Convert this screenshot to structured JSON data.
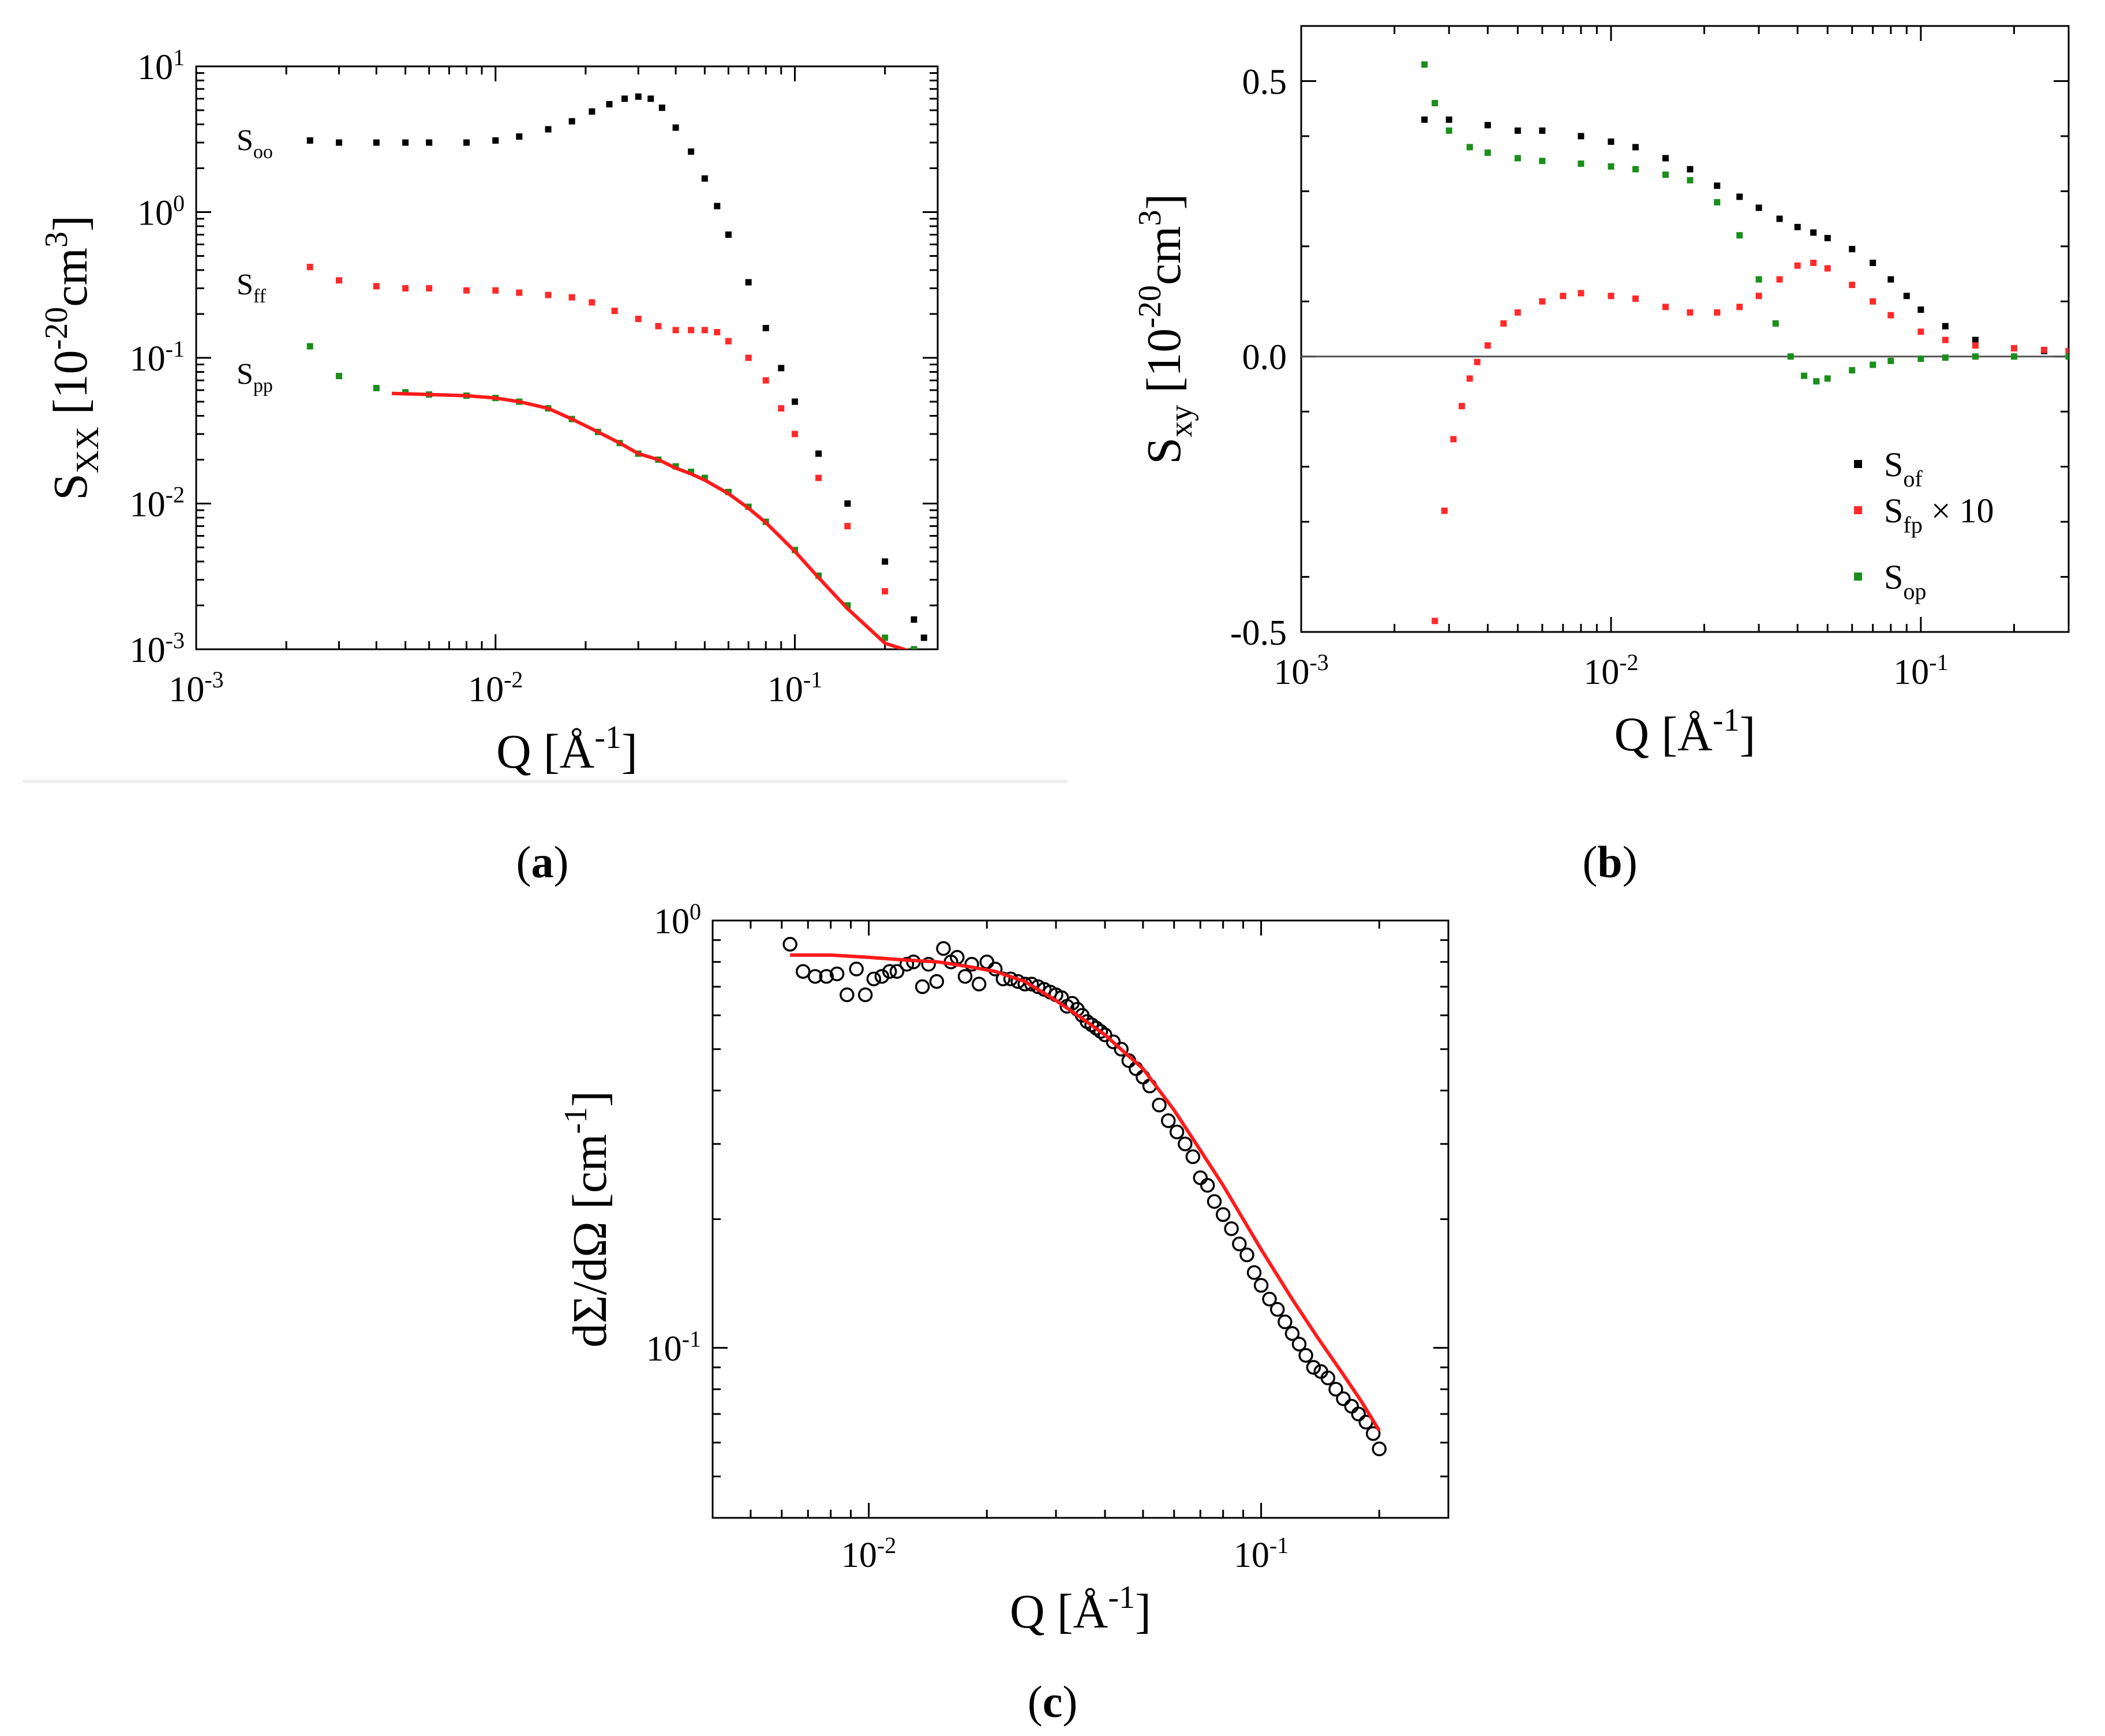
{
  "panel_labels": {
    "a": {
      "open": "(",
      "letter": "a",
      "close": ")"
    },
    "b": {
      "open": "(",
      "letter": "b",
      "close": ")"
    },
    "c": {
      "open": "(",
      "letter": "c",
      "close": ")"
    }
  },
  "colors": {
    "black": "#000000",
    "red": "#ff2a2a",
    "green": "#1a8f1a",
    "fit": "#ff1a1a",
    "axis": "#000000",
    "zero_line": "#555555"
  },
  "chart_data": [
    {
      "id": "a",
      "type": "scatter",
      "xscale": "log",
      "yscale": "log",
      "xlim": [
        0.001,
        0.3
      ],
      "ylim": [
        0.001,
        10
      ],
      "xlabel": {
        "base": "Q [Å",
        "sup": "-1",
        "tail": "]"
      },
      "ylabel": {
        "base": "S",
        "sub": "XX",
        "mid": " [10",
        "sup1": "-20",
        "mid2": "cm",
        "sup2": "3",
        "tail": "]"
      },
      "xticks": [
        {
          "base": "10",
          "exp": "-3"
        },
        {
          "base": "10",
          "exp": "-2"
        },
        {
          "base": "10",
          "exp": "-1"
        }
      ],
      "yticks": [
        {
          "base": "10",
          "exp": "-3"
        },
        {
          "base": "10",
          "exp": "-2"
        },
        {
          "base": "10",
          "exp": "-1"
        },
        {
          "base": "10",
          "exp": "0"
        },
        {
          "base": "10",
          "exp": "1"
        }
      ],
      "series": [
        {
          "name": "S_oo",
          "label": {
            "base": "S",
            "sub": "oo"
          },
          "color": "#000000",
          "marker": "square",
          "x": [
            0.0024,
            0.003,
            0.004,
            0.005,
            0.006,
            0.008,
            0.01,
            0.012,
            0.015,
            0.018,
            0.021,
            0.024,
            0.027,
            0.03,
            0.033,
            0.036,
            0.04,
            0.045,
            0.05,
            0.055,
            0.06,
            0.07,
            0.08,
            0.09,
            0.1,
            0.12,
            0.15,
            0.2,
            0.25,
            0.27
          ],
          "y": [
            3.1,
            3.0,
            3.0,
            3.0,
            3.0,
            3.0,
            3.1,
            3.3,
            3.7,
            4.2,
            4.9,
            5.5,
            6.0,
            6.2,
            6.0,
            5.2,
            3.8,
            2.6,
            1.7,
            1.1,
            0.7,
            0.33,
            0.16,
            0.085,
            0.05,
            0.022,
            0.01,
            0.004,
            0.0016,
            0.0012
          ]
        },
        {
          "name": "S_ff",
          "label": {
            "base": "S",
            "sub": "ff"
          },
          "color": "#ff2a2a",
          "marker": "square",
          "x": [
            0.0024,
            0.003,
            0.004,
            0.005,
            0.006,
            0.008,
            0.01,
            0.012,
            0.015,
            0.018,
            0.021,
            0.025,
            0.03,
            0.035,
            0.04,
            0.045,
            0.05,
            0.055,
            0.06,
            0.07,
            0.08,
            0.09,
            0.1,
            0.12,
            0.15,
            0.2,
            0.25
          ],
          "y": [
            0.42,
            0.34,
            0.31,
            0.3,
            0.3,
            0.29,
            0.29,
            0.28,
            0.27,
            0.26,
            0.24,
            0.21,
            0.185,
            0.165,
            0.155,
            0.155,
            0.155,
            0.15,
            0.13,
            0.1,
            0.07,
            0.045,
            0.03,
            0.015,
            0.007,
            0.0025,
            0.001
          ]
        },
        {
          "name": "S_pp",
          "label": {
            "base": "S",
            "sub": "pp"
          },
          "color": "#1a8f1a",
          "marker": "square",
          "x": [
            0.0024,
            0.003,
            0.004,
            0.005,
            0.006,
            0.008,
            0.01,
            0.012,
            0.015,
            0.018,
            0.022,
            0.026,
            0.03,
            0.035,
            0.04,
            0.045,
            0.05,
            0.06,
            0.07,
            0.08,
            0.1,
            0.12,
            0.15,
            0.2,
            0.25
          ],
          "y": [
            0.12,
            0.075,
            0.062,
            0.058,
            0.056,
            0.055,
            0.053,
            0.05,
            0.045,
            0.038,
            0.031,
            0.026,
            0.022,
            0.02,
            0.018,
            0.0165,
            0.015,
            0.012,
            0.0095,
            0.0075,
            0.0048,
            0.0032,
            0.002,
            0.0012,
            0.001
          ]
        },
        {
          "name": "S_pp fit",
          "color": "#ff1a1a",
          "marker": "line",
          "x": [
            0.0045,
            0.006,
            0.008,
            0.01,
            0.012,
            0.015,
            0.018,
            0.022,
            0.026,
            0.03,
            0.035,
            0.04,
            0.045,
            0.05,
            0.06,
            0.07,
            0.08,
            0.1,
            0.12,
            0.15,
            0.2,
            0.25
          ],
          "y": [
            0.057,
            0.056,
            0.055,
            0.053,
            0.05,
            0.045,
            0.038,
            0.031,
            0.026,
            0.022,
            0.02,
            0.0175,
            0.016,
            0.0145,
            0.0117,
            0.0093,
            0.0074,
            0.0047,
            0.0031,
            0.0019,
            0.0011,
            0.00095
          ]
        }
      ]
    },
    {
      "id": "b",
      "type": "scatter",
      "xscale": "log",
      "yscale": "linear",
      "xlim": [
        0.001,
        0.3
      ],
      "ylim": [
        -0.5,
        0.6
      ],
      "xlabel": {
        "base": "Q [Å",
        "sup": "-1",
        "tail": "]"
      },
      "ylabel": {
        "base": "S",
        "sub": "xy",
        "mid": " [10",
        "sup1": "-20",
        "mid2": "cm",
        "sup2": "3",
        "tail": "]"
      },
      "xticks": [
        {
          "base": "10",
          "exp": "-3"
        },
        {
          "base": "10",
          "exp": "-2"
        },
        {
          "base": "10",
          "exp": "-1"
        }
      ],
      "yticks": [
        {
          "value": -0.5,
          "label": "-0.5"
        },
        {
          "value": 0.0,
          "label": "0.0"
        },
        {
          "value": 0.5,
          "label": "0.5"
        }
      ],
      "legend": {
        "position": "lower-right",
        "entries": [
          {
            "base": "S",
            "sub": "of",
            "suffix": ""
          },
          {
            "base": "S",
            "sub": "fp",
            "suffix": " × 10"
          },
          {
            "base": "S",
            "sub": "op",
            "suffix": ""
          }
        ]
      },
      "series": [
        {
          "name": "S_of",
          "color": "#000000",
          "marker": "square",
          "x": [
            0.0025,
            0.003,
            0.004,
            0.005,
            0.006,
            0.008,
            0.01,
            0.012,
            0.015,
            0.018,
            0.022,
            0.026,
            0.03,
            0.035,
            0.04,
            0.045,
            0.05,
            0.06,
            0.07,
            0.08,
            0.09,
            0.1,
            0.12,
            0.15,
            0.2,
            0.25,
            0.3
          ],
          "y": [
            0.43,
            0.43,
            0.42,
            0.41,
            0.41,
            0.4,
            0.39,
            0.38,
            0.36,
            0.34,
            0.31,
            0.29,
            0.27,
            0.25,
            0.235,
            0.225,
            0.215,
            0.195,
            0.17,
            0.14,
            0.11,
            0.085,
            0.055,
            0.03,
            0.015,
            0.01,
            0.007
          ]
        },
        {
          "name": "S_fp x 10",
          "color": "#ff2a2a",
          "marker": "square",
          "x": [
            0.0027,
            0.0029,
            0.0031,
            0.0033,
            0.0035,
            0.0037,
            0.004,
            0.0045,
            0.005,
            0.006,
            0.007,
            0.008,
            0.01,
            0.012,
            0.015,
            0.018,
            0.022,
            0.026,
            0.03,
            0.035,
            0.04,
            0.045,
            0.05,
            0.06,
            0.07,
            0.08,
            0.1,
            0.12,
            0.15,
            0.2,
            0.25,
            0.3
          ],
          "y": [
            -0.48,
            -0.28,
            -0.15,
            -0.09,
            -0.04,
            -0.01,
            0.02,
            0.06,
            0.08,
            0.1,
            0.11,
            0.115,
            0.11,
            0.105,
            0.09,
            0.08,
            0.08,
            0.09,
            0.11,
            0.14,
            0.165,
            0.17,
            0.16,
            0.13,
            0.1,
            0.075,
            0.045,
            0.03,
            0.02,
            0.015,
            0.012,
            0.01
          ]
        },
        {
          "name": "S_op",
          "color": "#1a8f1a",
          "marker": "square",
          "x": [
            0.0025,
            0.0027,
            0.003,
            0.0035,
            0.004,
            0.005,
            0.006,
            0.008,
            0.01,
            0.012,
            0.015,
            0.018,
            0.022,
            0.026,
            0.03,
            0.034,
            0.038,
            0.042,
            0.046,
            0.05,
            0.06,
            0.07,
            0.08,
            0.1,
            0.12,
            0.15,
            0.2,
            0.3
          ],
          "y": [
            0.53,
            0.46,
            0.41,
            0.38,
            0.37,
            0.36,
            0.355,
            0.35,
            0.345,
            0.34,
            0.33,
            0.32,
            0.28,
            0.22,
            0.14,
            0.06,
            0.0,
            -0.035,
            -0.045,
            -0.04,
            -0.025,
            -0.015,
            -0.008,
            -0.004,
            -0.002,
            0.0,
            0.0,
            0.0
          ]
        }
      ]
    },
    {
      "id": "c",
      "type": "scatter",
      "xscale": "log",
      "yscale": "log",
      "xlim": [
        0.004,
        0.3
      ],
      "ylim": [
        0.04,
        1.0
      ],
      "xlabel": {
        "base": "Q [Å",
        "sup": "-1",
        "tail": "]"
      },
      "ylabel": {
        "base": "dΣ/dΩ [cm",
        "sup": "-1",
        "tail": "]"
      },
      "xticks": [
        {
          "value": 0.01,
          "base": "10",
          "exp": "-2"
        },
        {
          "value": 0.1,
          "base": "10",
          "exp": "-1"
        }
      ],
      "yticks": [
        {
          "value": 0.1,
          "base": "10",
          "exp": "-1"
        },
        {
          "value": 1.0,
          "base": "10",
          "exp": "0"
        }
      ],
      "series": [
        {
          "name": "data",
          "color": "#000000",
          "marker": "open-circle",
          "x": [
            0.0063,
            0.0068,
            0.0073,
            0.0078,
            0.0083,
            0.0088,
            0.0093,
            0.0098,
            0.0103,
            0.0108,
            0.0113,
            0.0118,
            0.0125,
            0.013,
            0.0137,
            0.0142,
            0.0149,
            0.0155,
            0.0162,
            0.0168,
            0.0176,
            0.0183,
            0.0191,
            0.02,
            0.021,
            0.022,
            0.023,
            0.024,
            0.025,
            0.026,
            0.027,
            0.028,
            0.029,
            0.03,
            0.031,
            0.032,
            0.033,
            0.034,
            0.035,
            0.036,
            0.037,
            0.038,
            0.039,
            0.04,
            0.042,
            0.044,
            0.046,
            0.048,
            0.05,
            0.052,
            0.055,
            0.058,
            0.061,
            0.064,
            0.067,
            0.07,
            0.073,
            0.076,
            0.08,
            0.084,
            0.088,
            0.092,
            0.096,
            0.1,
            0.105,
            0.11,
            0.115,
            0.12,
            0.125,
            0.13,
            0.136,
            0.142,
            0.148,
            0.155,
            0.162,
            0.17,
            0.177,
            0.185,
            0.193,
            0.2
          ],
          "y": [
            0.88,
            0.76,
            0.74,
            0.74,
            0.75,
            0.67,
            0.77,
            0.67,
            0.73,
            0.74,
            0.76,
            0.76,
            0.79,
            0.8,
            0.7,
            0.79,
            0.72,
            0.86,
            0.8,
            0.82,
            0.74,
            0.79,
            0.71,
            0.8,
            0.77,
            0.73,
            0.73,
            0.72,
            0.71,
            0.71,
            0.7,
            0.69,
            0.68,
            0.67,
            0.66,
            0.63,
            0.64,
            0.62,
            0.6,
            0.58,
            0.57,
            0.56,
            0.55,
            0.54,
            0.52,
            0.5,
            0.47,
            0.45,
            0.43,
            0.41,
            0.37,
            0.34,
            0.32,
            0.3,
            0.28,
            0.25,
            0.24,
            0.22,
            0.205,
            0.19,
            0.175,
            0.165,
            0.15,
            0.14,
            0.13,
            0.123,
            0.115,
            0.108,
            0.102,
            0.096,
            0.09,
            0.088,
            0.085,
            0.08,
            0.076,
            0.073,
            0.07,
            0.067,
            0.063,
            0.058
          ]
        },
        {
          "name": "fit",
          "color": "#ff1a1a",
          "marker": "line",
          "x": [
            0.0063,
            0.008,
            0.01,
            0.012,
            0.015,
            0.018,
            0.021,
            0.025,
            0.03,
            0.035,
            0.04,
            0.045,
            0.05,
            0.06,
            0.07,
            0.08,
            0.09,
            0.1,
            0.12,
            0.14,
            0.16,
            0.18,
            0.2
          ],
          "y": [
            0.83,
            0.83,
            0.82,
            0.81,
            0.8,
            0.78,
            0.76,
            0.72,
            0.65,
            0.59,
            0.54,
            0.49,
            0.45,
            0.36,
            0.29,
            0.24,
            0.2,
            0.17,
            0.13,
            0.105,
            0.088,
            0.075,
            0.064
          ]
        }
      ]
    }
  ]
}
